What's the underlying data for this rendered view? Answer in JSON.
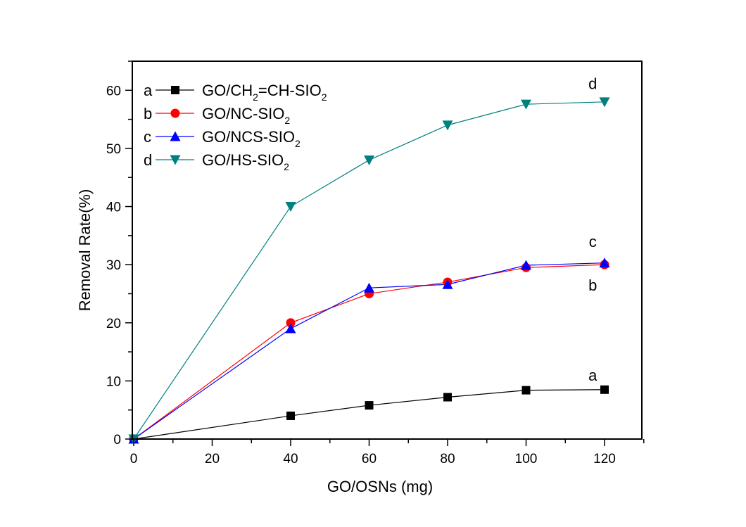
{
  "chart_data": {
    "type": "line",
    "title": "",
    "xlabel": "GO/OSNs (mg)",
    "ylabel": "Removal Rate(%)",
    "xlim": [
      0,
      130
    ],
    "ylim": [
      0,
      65
    ],
    "x_ticks": [
      0,
      20,
      40,
      60,
      80,
      100,
      120
    ],
    "x_minor_step": 10,
    "y_ticks": [
      0,
      10,
      20,
      30,
      40,
      50,
      60
    ],
    "y_minor_step": 5,
    "grid": false,
    "legend_position": "top-left",
    "x": [
      0,
      40,
      60,
      80,
      100,
      120
    ],
    "series": [
      {
        "key": "a",
        "name": "GO/CH",
        "sub1": "2",
        "name2": "=CH-SIO",
        "sub2": "2",
        "color": "#000000",
        "marker": "square",
        "values": [
          0,
          4.0,
          5.8,
          7.2,
          8.4,
          8.5
        ],
        "annotation": {
          "text": "a",
          "x": 117,
          "y": 11
        }
      },
      {
        "key": "b",
        "name": "GO/NC-SIO",
        "sub1": "2",
        "color": "#ff0000",
        "marker": "circle",
        "values": [
          0,
          20.0,
          25.0,
          27.0,
          29.5,
          30.0
        ],
        "annotation": {
          "text": "b",
          "x": 117,
          "y": 26.5
        }
      },
      {
        "key": "c",
        "name": "GO/NCS-SIO",
        "sub1": "2",
        "color": "#0000ff",
        "marker": "triangle-up",
        "values": [
          0,
          19.0,
          26.0,
          26.6,
          29.9,
          30.3
        ],
        "annotation": {
          "text": "c",
          "x": 117,
          "y": 34
        }
      },
      {
        "key": "d",
        "name": "GO/HS-SIO",
        "sub1": "2",
        "color": "#008080",
        "marker": "triangle-down",
        "values": [
          0,
          40.0,
          48.0,
          54.0,
          57.6,
          58.0
        ],
        "annotation": {
          "text": "d",
          "x": 117,
          "y": 61.2
        }
      }
    ]
  }
}
